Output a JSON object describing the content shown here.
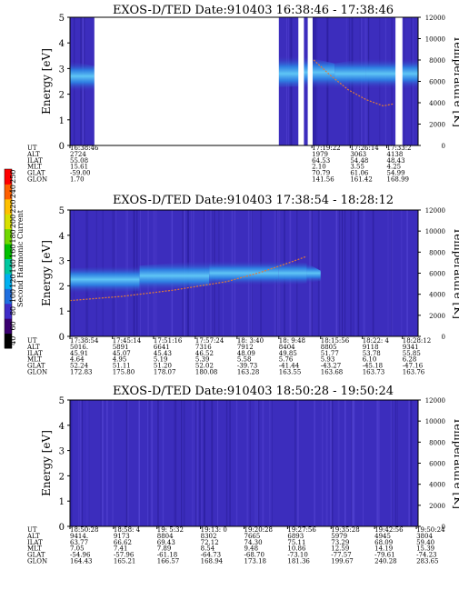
{
  "colors": {
    "background": "#3c2dbd",
    "band": "#2d86e6",
    "band_core": "#5fc6f5",
    "gap": "#ffffff",
    "temperature_trace": "#e07a3a"
  },
  "colorbar": {
    "label": "Second Harmonic Current",
    "tick_labels": [
      "40",
      "60",
      "80",
      "100",
      "120",
      "140",
      "160",
      "180",
      "200",
      "220",
      "240",
      "250"
    ],
    "colors": [
      "#000000",
      "#3a0070",
      "#3f2cc8",
      "#1f6fe0",
      "#00b0f0",
      "#00c8a0",
      "#00c000",
      "#70d800",
      "#d8e000",
      "#ffc000",
      "#ff6000",
      "#ff0000"
    ]
  },
  "chart_data": [
    {
      "type": "heatmap",
      "title": "EXOS-D/TED   Date:910403   16:38:46 - 17:38:46",
      "ylabel": "Energy [eV]",
      "ylim": [
        0,
        5
      ],
      "yticks": [
        "0",
        "1",
        "2",
        "3",
        "4",
        "5"
      ],
      "y2label": "Temperature [K]",
      "y2lim": [
        0,
        12000
      ],
      "y2ticks": [
        "0",
        "2000",
        "4000",
        "6000",
        "8000",
        "10000",
        "12000"
      ],
      "orbit_labels": [
        "UT",
        "ALT",
        "ILAT",
        "MLT",
        "GLAT",
        "GLON"
      ],
      "orbit_columns": [
        {
          "t": 0.0,
          "values": [
            "16:38:46",
            "2724",
            "55.08",
            "15.61",
            "-59.00",
            "1.70"
          ]
        },
        {
          "t": 0.695,
          "values": [
            "17:19:22",
            "1979",
            "64.53",
            "2.10",
            "70.79",
            "141.56"
          ]
        },
        {
          "t": 0.805,
          "values": [
            "17:26:14",
            "3063",
            "54.48",
            "3.55",
            "61.06",
            "161.42"
          ]
        },
        {
          "t": 0.91,
          "values": [
            "17:33:2",
            "4138",
            "48.43",
            "4.25",
            "54.99",
            "168.99"
          ]
        }
      ],
      "data_gaps": [
        [
          0.07,
          0.6
        ],
        [
          0.656,
          0.672
        ],
        [
          0.683,
          0.697
        ],
        [
          0.935,
          0.955
        ]
      ],
      "band_energy": [
        [
          0.0,
          2.7,
          0.6
        ],
        [
          0.07,
          2.6,
          0.5
        ],
        [
          0.66,
          2.9,
          0.6
        ],
        [
          0.76,
          2.7,
          0.5
        ],
        [
          0.85,
          2.8,
          0.6
        ],
        [
          1.0,
          2.8,
          0.6
        ]
      ],
      "temperature_trace": [
        [
          0.7,
          8000
        ],
        [
          0.75,
          6500
        ],
        [
          0.8,
          5200
        ],
        [
          0.85,
          4300
        ],
        [
          0.9,
          3700
        ],
        [
          0.93,
          3900
        ]
      ]
    },
    {
      "type": "heatmap",
      "title": "EXOS-D/TED   Date:910403   17:38:54 - 18:28:12",
      "ylabel": "Energy [eV]",
      "ylim": [
        0,
        5
      ],
      "yticks": [
        "0",
        "1",
        "2",
        "3",
        "4",
        "5"
      ],
      "y2label": "Temperature [K]",
      "y2lim": [
        0,
        12000
      ],
      "y2ticks": [
        "0",
        "2000",
        "4000",
        "6000",
        "8000",
        "10000",
        "12000"
      ],
      "orbit_labels": [
        "UT",
        "ALT",
        "ILAT",
        "MLT",
        "GLAT",
        "GLON"
      ],
      "orbit_columns": [
        {
          "t": 0.0,
          "values": [
            "17:38:54",
            "5016.",
            "45.91",
            "4.64",
            "52.24",
            "172.83"
          ]
        },
        {
          "t": 0.122,
          "values": [
            "17:45:14",
            "5891",
            "45.07",
            "4.95",
            "51.11",
            "175.80"
          ]
        },
        {
          "t": 0.24,
          "values": [
            "17:51:16",
            "6641",
            "45.43",
            "5.19",
            "51.20",
            "178.07"
          ]
        },
        {
          "t": 0.36,
          "values": [
            "17:57:24",
            "7316",
            "46.52",
            "5.39",
            "52.02",
            "180.08"
          ]
        },
        {
          "t": 0.48,
          "values": [
            "18: 3:40",
            "7912",
            "48.09",
            "5.58",
            "-39.73",
            "163.28"
          ]
        },
        {
          "t": 0.6,
          "values": [
            "18: 9:48",
            "8404",
            "49.85",
            "5.76",
            "-41.44",
            "163.55"
          ]
        },
        {
          "t": 0.72,
          "values": [
            "18:15:56",
            "8805",
            "51.77",
            "5.93",
            "-43.27",
            "163.68"
          ]
        },
        {
          "t": 0.84,
          "values": [
            "18:22: 4",
            "9118",
            "53.78",
            "6.10",
            "-45.18",
            "163.73"
          ]
        },
        {
          "t": 0.955,
          "values": [
            "18:28:12",
            "9341",
            "55.85",
            "6.28",
            "-47.16",
            "163.76"
          ]
        }
      ],
      "data_gaps": [],
      "band_energy": [
        [
          0.0,
          2.2,
          0.5
        ],
        [
          0.2,
          2.3,
          0.5
        ],
        [
          0.4,
          2.5,
          0.5
        ],
        [
          0.6,
          2.5,
          0.5
        ],
        [
          0.68,
          2.5,
          0.4
        ],
        [
          0.72,
          2.4,
          0.2
        ]
      ],
      "temperature_trace": [
        [
          0.0,
          3400
        ],
        [
          0.15,
          3800
        ],
        [
          0.3,
          4400
        ],
        [
          0.45,
          5200
        ],
        [
          0.55,
          6100
        ],
        [
          0.63,
          7000
        ],
        [
          0.68,
          7600
        ]
      ]
    },
    {
      "type": "heatmap",
      "title": "EXOS-D/TED   Date:910403   18:50:28 - 19:50:24",
      "ylabel": "Energy [eV]",
      "ylim": [
        0,
        5
      ],
      "yticks": [
        "0",
        "1",
        "2",
        "3",
        "4",
        "5"
      ],
      "y2label": "Temperature [K]",
      "y2lim": [
        0,
        12000
      ],
      "y2ticks": [
        "0",
        "2000",
        "4000",
        "6000",
        "8000",
        "10000",
        "12000"
      ],
      "orbit_labels": [
        "UT",
        "ALT",
        "ILAT",
        "MLT",
        "GLAT",
        "GLON"
      ],
      "orbit_columns": [
        {
          "t": 0.0,
          "values": [
            "18:50:28",
            "9414.",
            "63.77",
            "7.05",
            "-54.96",
            "164.43"
          ]
        },
        {
          "t": 0.125,
          "values": [
            "18:58: 4",
            "9173",
            "66.62",
            "7.41",
            "-57.96",
            "165.21"
          ]
        },
        {
          "t": 0.25,
          "values": [
            "19: 5:32",
            "8804",
            "69.43",
            "7.89",
            "-61.18",
            "166.57"
          ]
        },
        {
          "t": 0.375,
          "values": [
            "19:13: 0",
            "8302",
            "72.12",
            "8.54",
            "-64.73",
            "168.94"
          ]
        },
        {
          "t": 0.5,
          "values": [
            "19:20:28",
            "7665",
            "74.30",
            "9.48",
            "-68.70",
            "173.18"
          ]
        },
        {
          "t": 0.625,
          "values": [
            "19:27:56",
            "6893",
            "75.11",
            "10.86",
            "-73.10",
            "181.36"
          ]
        },
        {
          "t": 0.75,
          "values": [
            "19:35:28",
            "5979",
            "73.29",
            "12.59",
            "-77.57",
            "199.67"
          ]
        },
        {
          "t": 0.875,
          "values": [
            "19:42:56",
            "4945",
            "68.09",
            "14.19",
            "-79.61",
            "240.28"
          ]
        },
        {
          "t": 0.995,
          "values": [
            "19:50:24",
            "3804",
            "59.40",
            "15.39",
            "-74.23",
            "283.65"
          ]
        }
      ],
      "data_gaps": [],
      "band_energy": [],
      "temperature_trace": []
    }
  ]
}
